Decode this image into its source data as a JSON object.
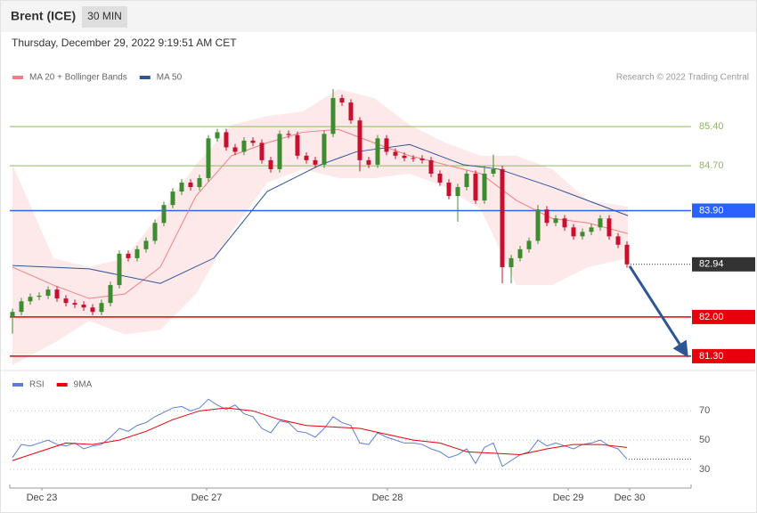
{
  "header": {
    "title": "Brent (ICE)",
    "timeframe": "30 MIN",
    "timestamp": "Thursday, December 29, 2022 9:19:51 AM CET",
    "copyright": "Research © 2022 Trading Central"
  },
  "chart_data": [
    {
      "type": "candlestick",
      "up_color": "#3d8c2f",
      "down_color": "#c8102e",
      "x": [
        0,
        1,
        2,
        3,
        4,
        5,
        6,
        7,
        8,
        9,
        10,
        11,
        12,
        13,
        14,
        15,
        16,
        17,
        18,
        19,
        20,
        21,
        22,
        23,
        24,
        25,
        26,
        27,
        28,
        29,
        30,
        31,
        32,
        33,
        34,
        35,
        36,
        37,
        38,
        39,
        40,
        41,
        42,
        43,
        44,
        45,
        46,
        47,
        48,
        49,
        50,
        51,
        52,
        53,
        54,
        55,
        56,
        57,
        58,
        59,
        60,
        61,
        62,
        63,
        64,
        65,
        66,
        67,
        68,
        69
      ],
      "open": [
        82.0,
        82.09,
        82.28,
        82.36,
        82.38,
        82.49,
        82.33,
        82.25,
        82.22,
        82.17,
        82.09,
        82.25,
        82.57,
        83.13,
        83.05,
        83.21,
        83.36,
        83.68,
        84.0,
        84.24,
        84.4,
        84.32,
        84.48,
        85.19,
        85.3,
        85.03,
        84.95,
        85.15,
        85.11,
        84.8,
        84.64,
        85.27,
        85.25,
        84.88,
        84.8,
        84.72,
        85.27,
        85.91,
        85.83,
        85.51,
        84.8,
        84.72,
        85.19,
        84.95,
        84.88,
        84.84,
        84.83,
        84.8,
        84.56,
        84.4,
        84.16,
        84.32,
        84.56,
        84.08,
        84.56,
        84.64,
        82.89,
        83.05,
        83.21,
        83.36,
        83.92,
        83.68,
        83.76,
        83.6,
        83.44,
        83.52,
        83.6,
        83.76,
        83.44,
        83.29
      ],
      "high": [
        82.15,
        82.34,
        82.42,
        82.44,
        82.55,
        82.55,
        82.39,
        82.31,
        82.28,
        82.23,
        82.31,
        82.63,
        83.19,
        83.19,
        83.27,
        83.42,
        83.74,
        84.06,
        84.3,
        84.46,
        84.46,
        84.54,
        85.25,
        85.36,
        85.36,
        85.09,
        85.21,
        85.21,
        85.17,
        84.86,
        85.33,
        85.33,
        85.31,
        84.94,
        84.86,
        85.33,
        86.07,
        85.97,
        85.89,
        85.57,
        84.86,
        85.25,
        85.25,
        85.01,
        84.94,
        84.89,
        84.89,
        84.86,
        84.62,
        84.46,
        84.38,
        84.62,
        84.62,
        84.7,
        84.9,
        84.7,
        83.11,
        83.27,
        83.42,
        84.0,
        83.98,
        83.82,
        83.82,
        83.66,
        83.58,
        83.66,
        83.82,
        83.82,
        83.5,
        83.35
      ],
      "low": [
        81.7,
        82.03,
        82.22,
        82.3,
        82.32,
        82.27,
        82.19,
        82.16,
        82.11,
        82.03,
        82.03,
        82.19,
        82.51,
        82.99,
        82.99,
        83.15,
        83.3,
        83.62,
        83.94,
        84.18,
        84.26,
        84.26,
        84.42,
        85.13,
        84.97,
        84.89,
        84.89,
        85.05,
        84.74,
        84.58,
        84.58,
        85.19,
        84.82,
        84.74,
        84.66,
        84.66,
        85.21,
        85.77,
        85.45,
        84.6,
        84.66,
        84.66,
        84.89,
        84.82,
        84.78,
        84.77,
        84.74,
        84.5,
        84.34,
        84.1,
        83.7,
        84.26,
        84.02,
        84.02,
        84.5,
        82.6,
        82.6,
        82.99,
        83.15,
        83.3,
        83.62,
        83.62,
        83.54,
        83.38,
        83.38,
        83.46,
        83.54,
        83.38,
        83.23,
        82.88
      ],
      "close": [
        82.09,
        82.28,
        82.36,
        82.38,
        82.49,
        82.33,
        82.25,
        82.22,
        82.17,
        82.09,
        82.25,
        82.57,
        83.13,
        83.05,
        83.21,
        83.36,
        83.68,
        84.0,
        84.24,
        84.4,
        84.32,
        84.48,
        85.19,
        85.3,
        85.03,
        84.95,
        85.15,
        85.11,
        84.8,
        84.64,
        85.27,
        85.25,
        84.88,
        84.8,
        84.72,
        85.27,
        85.91,
        85.83,
        85.51,
        84.8,
        84.72,
        85.19,
        84.95,
        84.88,
        84.84,
        84.83,
        84.8,
        84.56,
        84.4,
        84.16,
        84.32,
        84.56,
        84.08,
        84.56,
        84.64,
        82.89,
        83.05,
        83.21,
        83.36,
        83.92,
        83.68,
        83.76,
        83.6,
        83.44,
        83.52,
        83.6,
        83.76,
        83.44,
        83.29,
        82.94
      ],
      "series": [
        {
          "name": "MA 20 + Bollinger Bands",
          "color": "#f08080",
          "band_color": "#fde3e3",
          "x": [
            0,
            4.6,
            8.6,
            12.6,
            16.6,
            20.6,
            24.6,
            28.6,
            32.6,
            36.6,
            40.6,
            44.6,
            48.6,
            52.6,
            56.6,
            60.6,
            64.6,
            69.1
          ],
          "values": [
            82.89,
            82.57,
            82.33,
            82.41,
            82.89,
            84.16,
            84.88,
            85.11,
            85.3,
            85.35,
            85.11,
            84.88,
            84.72,
            84.56,
            84.08,
            83.76,
            83.68,
            83.49
          ],
          "upper": [
            84.72,
            83.05,
            82.89,
            83.05,
            83.84,
            84.72,
            85.43,
            85.59,
            85.67,
            86.07,
            85.91,
            85.43,
            85.11,
            84.88,
            84.88,
            84.64,
            84.08,
            83.97
          ],
          "lower": [
            81.14,
            81.53,
            81.93,
            81.69,
            81.77,
            82.41,
            83.52,
            84.4,
            84.64,
            84.48,
            84.48,
            84.56,
            84.32,
            83.92,
            82.57,
            82.57,
            82.89,
            83.05
          ]
        },
        {
          "name": "MA 50",
          "color": "#2f5597",
          "x": [
            0,
            8.6,
            16.6,
            22.6,
            28.6,
            34.6,
            38.6,
            44.6,
            50.6,
            54.6,
            60.6,
            64.6,
            69.1
          ],
          "values": [
            82.92,
            82.86,
            82.6,
            83.05,
            84.24,
            84.72,
            84.95,
            85.08,
            84.72,
            84.64,
            84.32,
            84.08,
            83.81
          ]
        }
      ],
      "levels": [
        {
          "value": 85.4,
          "label": "85.40",
          "color": "#8cb860",
          "line": "solid",
          "boxed": false
        },
        {
          "value": 84.7,
          "label": "84.70",
          "color": "#8cb860",
          "line": "solid",
          "boxed": false
        },
        {
          "value": 83.9,
          "label": "83.90",
          "color": "#2962ff",
          "line": "solid",
          "boxed": true
        },
        {
          "value": 82.94,
          "color": "#333333",
          "line": "dotted",
          "boxed": true
        },
        {
          "value": 82.0,
          "label": "82.00",
          "color": "#e8000b",
          "line": "solid",
          "boxed": true
        },
        {
          "value": 81.3,
          "label": "81.30",
          "color": "#e8000b",
          "line": "solid",
          "boxed": true
        }
      ],
      "xlim": [
        -0.3,
        76.2
      ],
      "ylim": [
        81.06,
        86.15
      ]
    },
    {
      "type": "line",
      "x": [
        0,
        1,
        2,
        3,
        4,
        5,
        6,
        7,
        8,
        9,
        10,
        11,
        12,
        13,
        14,
        15,
        16,
        17,
        18,
        19,
        20,
        21,
        22,
        23,
        24,
        25,
        26,
        27,
        28,
        29,
        30,
        31,
        32,
        33,
        34,
        35,
        36,
        37,
        38,
        39,
        40,
        41,
        42,
        43,
        44,
        45,
        46,
        47,
        48,
        49,
        50,
        51,
        52,
        53,
        54,
        55,
        56,
        57,
        58,
        59,
        60,
        61,
        62,
        63,
        64,
        65,
        66,
        67,
        68,
        69
      ],
      "series": [
        {
          "name": "RSI",
          "color": "#5b7fd6",
          "values": [
            38,
            47,
            46,
            48,
            50,
            47,
            46,
            48,
            44,
            46,
            47,
            52,
            58,
            56,
            60,
            62,
            66,
            69,
            72,
            73,
            70,
            72,
            78,
            74,
            71,
            74,
            68,
            66,
            58,
            55,
            63,
            62,
            56,
            55,
            52,
            58,
            66,
            62,
            60,
            48,
            47,
            55,
            52,
            50,
            48,
            48,
            47,
            44,
            42,
            38,
            40,
            44,
            34,
            45,
            48,
            32,
            36,
            40,
            42,
            50,
            46,
            48,
            46,
            44,
            47,
            48,
            50,
            46,
            44,
            37
          ]
        },
        {
          "name": "9MA",
          "color": "#e8000b",
          "x": [
            0,
            3,
            6,
            9,
            12,
            15,
            18,
            21,
            24,
            27,
            30,
            33,
            36,
            39,
            42,
            45,
            48,
            51,
            54,
            57,
            60,
            63,
            66,
            69
          ],
          "values": [
            36,
            42,
            48,
            47,
            50,
            56,
            64,
            70,
            72,
            70,
            64,
            60,
            59,
            58,
            54,
            50,
            48,
            42,
            41,
            40,
            44,
            47,
            47,
            45
          ]
        }
      ],
      "xlim": [
        -0.3,
        76.2
      ],
      "ylim": [
        19,
        83
      ],
      "yticks": [
        30,
        50,
        70
      ],
      "xticks": [
        {
          "value": 3.3,
          "label": "Dec 23"
        },
        {
          "value": 21.8,
          "label": "Dec 27"
        },
        {
          "value": 42.1,
          "label": "Dec 28"
        },
        {
          "value": 62.4,
          "label": "Dec 29"
        },
        {
          "value": 69.3,
          "label": "Dec 30"
        }
      ]
    }
  ]
}
